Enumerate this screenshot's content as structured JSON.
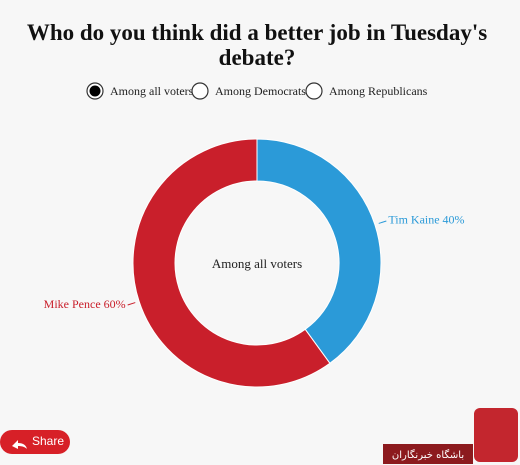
{
  "chart_data": {
    "type": "donut",
    "title": "Who do you think did a better job in Tuesday's debate?",
    "center_label": "Among all voters",
    "values": [
      40,
      60
    ],
    "value_labels": [
      "Tim Kaine 40%",
      "Mike Pence 60%"
    ],
    "colors": [
      "#2b9ad8",
      "#c91f2b"
    ]
  },
  "controls": {
    "options": [
      "Among all voters",
      "Among Democrats",
      "Among Republicans"
    ],
    "selected": 0
  },
  "share": "Share",
  "watermark": "باشگاه خبرنگاران"
}
